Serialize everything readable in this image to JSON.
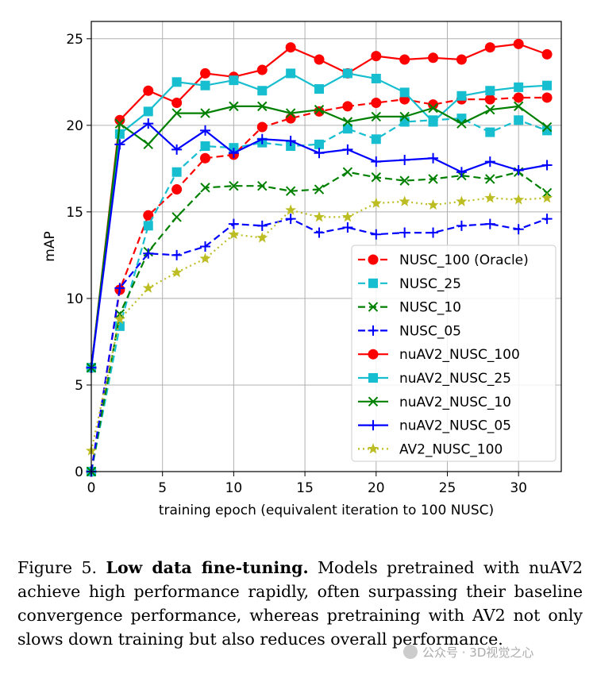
{
  "chart_data": {
    "type": "line",
    "xlabel": "training epoch (equivalent iteration to 100 NUSC)",
    "ylabel": "mAP",
    "xlim": [
      0,
      33
    ],
    "ylim": [
      0,
      26
    ],
    "xticks": [
      0,
      5,
      10,
      15,
      20,
      25,
      30
    ],
    "yticks": [
      0,
      5,
      10,
      15,
      20,
      25
    ],
    "grid": true,
    "legend_position": "lower-right",
    "x": [
      0,
      2,
      4,
      6,
      8,
      10,
      12,
      14,
      16,
      18,
      20,
      22,
      24,
      26,
      28,
      30,
      32
    ],
    "series": [
      {
        "name": "NUSC_100 (Oracle)",
        "color": "#ff0000",
        "linestyle": "dashed",
        "marker": "circle",
        "values": [
          0,
          10.5,
          14.8,
          16.3,
          18.1,
          18.3,
          19.9,
          20.4,
          20.8,
          21.1,
          21.3,
          21.5,
          21.2,
          21.5,
          21.5,
          21.6,
          21.6
        ]
      },
      {
        "name": "NUSC_25",
        "color": "#17becf",
        "linestyle": "dashed",
        "marker": "square",
        "values": [
          0,
          8.4,
          14.2,
          17.3,
          18.8,
          18.7,
          19.0,
          18.8,
          18.9,
          19.8,
          19.2,
          20.2,
          20.3,
          20.4,
          19.6,
          20.3,
          19.7
        ]
      },
      {
        "name": "NUSC_10",
        "color": "#008000",
        "linestyle": "dashed",
        "marker": "x",
        "values": [
          0,
          9.1,
          12.7,
          14.7,
          16.4,
          16.5,
          16.5,
          16.2,
          16.3,
          17.3,
          17.0,
          16.8,
          16.9,
          17.1,
          16.9,
          17.3,
          16.1
        ]
      },
      {
        "name": "NUSC_05",
        "color": "#0000ff",
        "linestyle": "dashed",
        "marker": "plus",
        "values": [
          0,
          10.6,
          12.6,
          12.5,
          13.0,
          14.3,
          14.2,
          14.6,
          13.8,
          14.1,
          13.7,
          13.8,
          13.8,
          14.2,
          14.3,
          14.0,
          14.6
        ]
      },
      {
        "name": "nuAV2_NUSC_100",
        "color": "#ff0000",
        "linestyle": "solid",
        "marker": "circle",
        "values": [
          6.0,
          20.3,
          22.0,
          21.3,
          23.0,
          22.8,
          23.2,
          24.5,
          23.8,
          23.0,
          24.0,
          23.8,
          23.9,
          23.8,
          24.5,
          24.7,
          24.1
        ]
      },
      {
        "name": "nuAV2_NUSC_25",
        "color": "#17becf",
        "linestyle": "solid",
        "marker": "square",
        "values": [
          6.0,
          19.5,
          20.8,
          22.5,
          22.3,
          22.6,
          22.0,
          23.0,
          22.1,
          23.0,
          22.7,
          21.9,
          20.2,
          21.7,
          22.0,
          22.2,
          22.3
        ]
      },
      {
        "name": "nuAV2_NUSC_10",
        "color": "#008000",
        "linestyle": "solid",
        "marker": "x",
        "values": [
          6.0,
          20.1,
          18.9,
          20.7,
          20.7,
          21.1,
          21.1,
          20.7,
          20.9,
          20.2,
          20.5,
          20.5,
          21.0,
          20.1,
          20.9,
          21.1,
          19.9
        ]
      },
      {
        "name": "nuAV2_NUSC_05",
        "color": "#0000ff",
        "linestyle": "solid",
        "marker": "plus",
        "values": [
          6.0,
          18.9,
          20.1,
          18.6,
          19.7,
          18.4,
          19.2,
          19.1,
          18.4,
          18.6,
          17.9,
          18.0,
          18.1,
          17.3,
          17.9,
          17.4,
          17.7
        ]
      },
      {
        "name": "AV2_NUSC_100",
        "color": "#bcbd22",
        "linestyle": "dotted",
        "marker": "star",
        "values": [
          1.2,
          8.8,
          10.6,
          11.5,
          12.3,
          13.7,
          13.5,
          15.1,
          14.7,
          14.7,
          15.5,
          15.6,
          15.4,
          15.6,
          15.8,
          15.7,
          15.8
        ]
      }
    ]
  },
  "caption": {
    "label": "Figure 5.",
    "title": "Low data fine-tuning.",
    "text": "Models pretrained with nuAV2 achieve high performance rapidly, often surpassing their baseline convergence performance, whereas pretraining with AV2 not only slows down training but also reduces overall performance."
  },
  "watermark": "公众号 · 3D视觉之心"
}
